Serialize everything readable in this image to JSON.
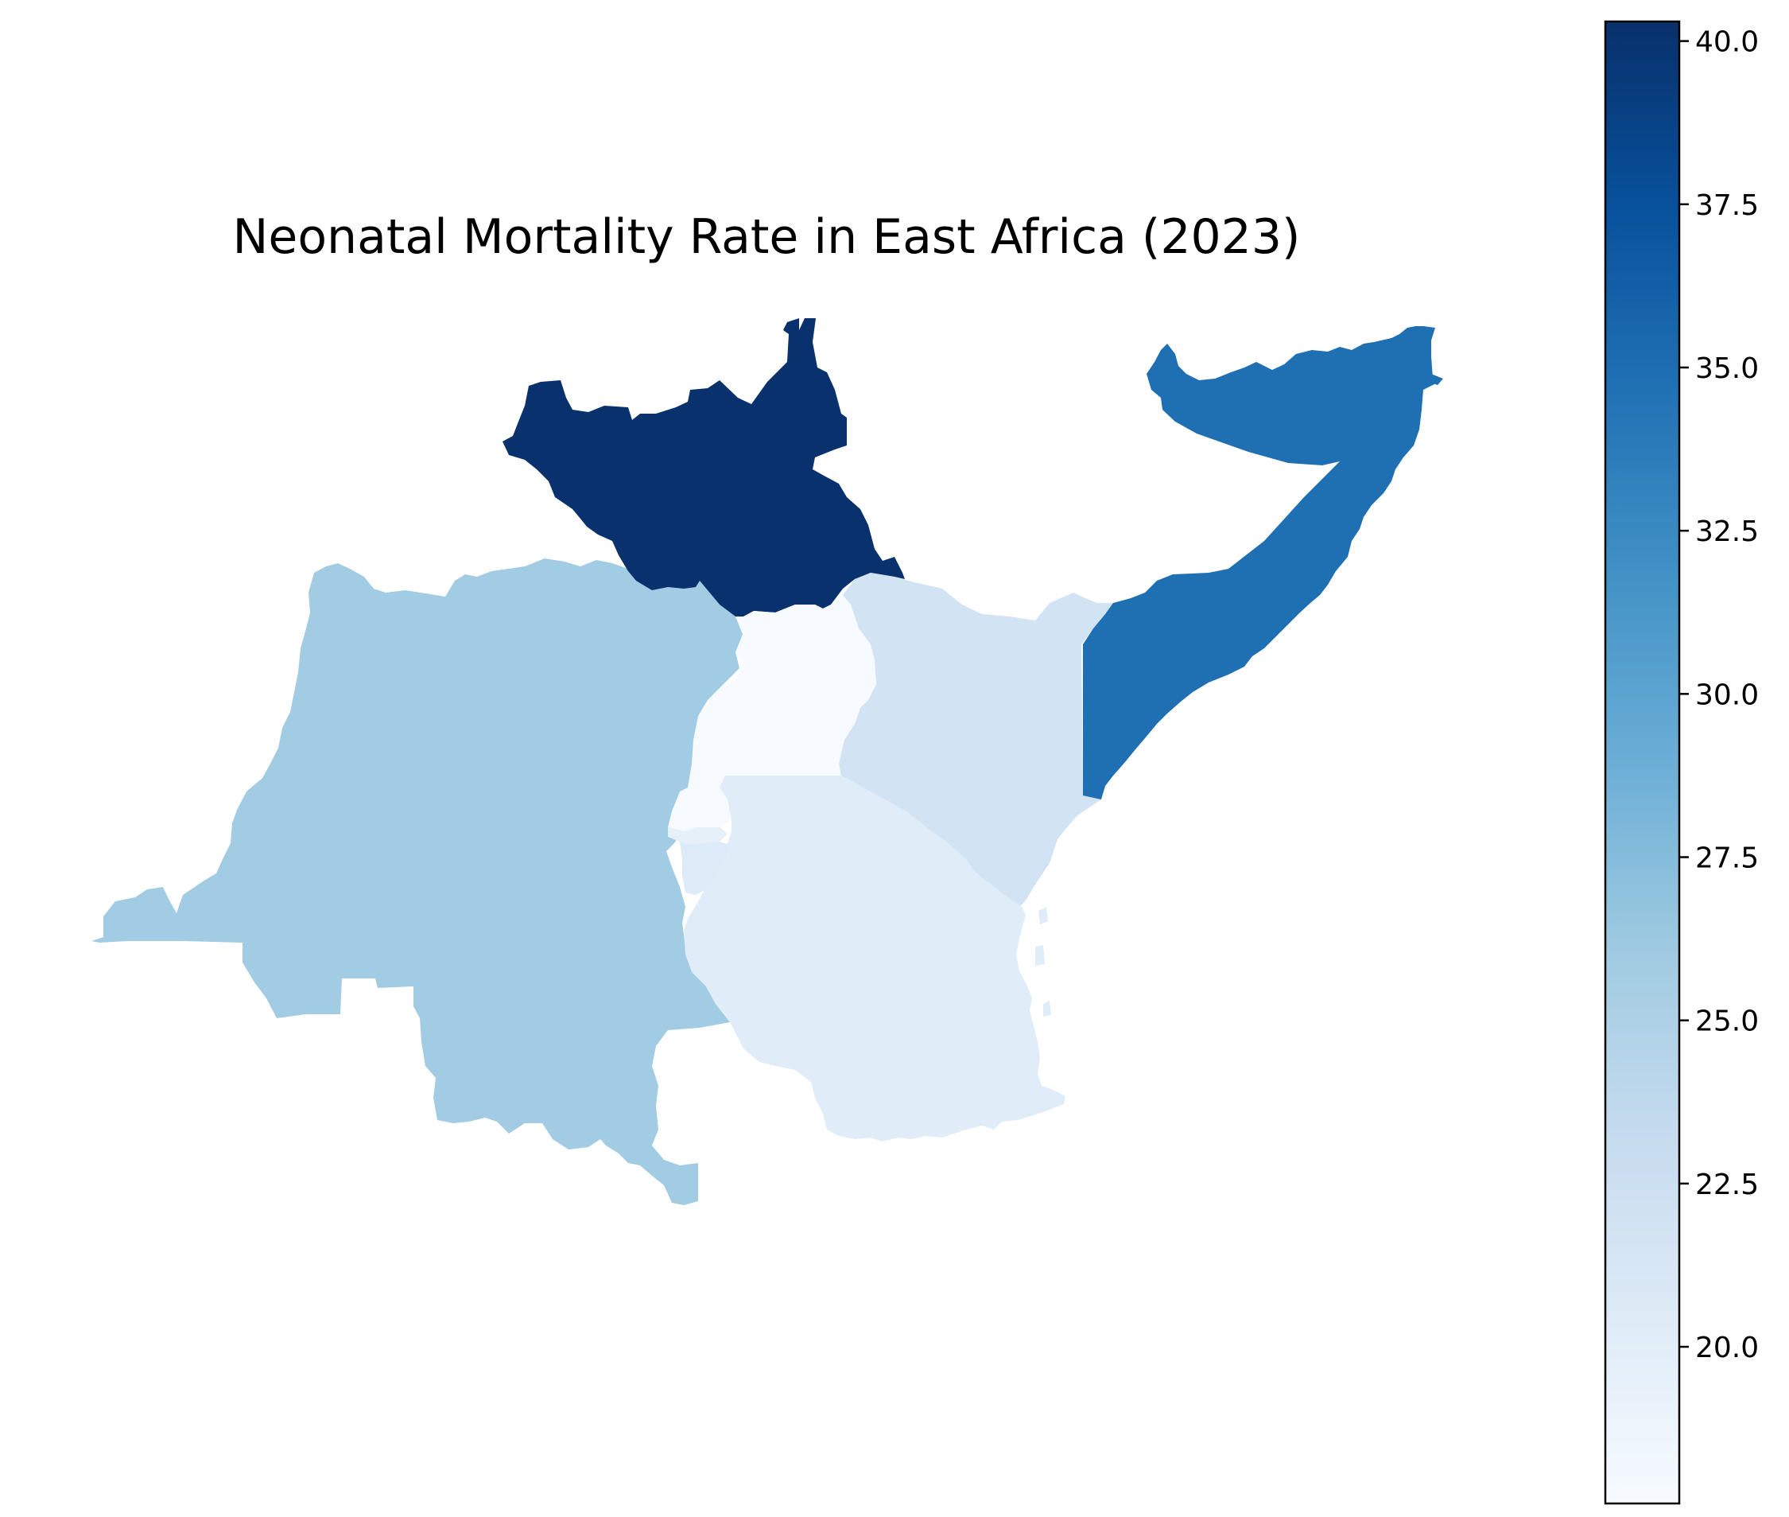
{
  "chart_data": {
    "type": "choropleth",
    "title": "Neonatal Mortality Rate in East Africa (2023)",
    "colormap": "Blues",
    "color_range": [
      17.6,
      40.3
    ],
    "regions": [
      {
        "id": "south-sudan",
        "value": 40.2
      },
      {
        "id": "somalia",
        "value": 34.8
      },
      {
        "id": "dr-congo",
        "value": 25.8
      },
      {
        "id": "kenya",
        "value": 21.8
      },
      {
        "id": "tanzania",
        "value": 20.2
      },
      {
        "id": "rwanda",
        "value": 19.6
      },
      {
        "id": "burundi",
        "value": 20.6
      },
      {
        "id": "uganda",
        "value": 17.6
      }
    ],
    "colorbar": {
      "ticks": [
        20.0,
        22.5,
        25.0,
        27.5,
        30.0,
        32.5,
        35.0,
        37.5,
        40.0
      ],
      "tick_labels": [
        "20.0",
        "22.5",
        "25.0",
        "27.5",
        "30.0",
        "32.5",
        "35.0",
        "37.5",
        "40.0"
      ]
    }
  }
}
